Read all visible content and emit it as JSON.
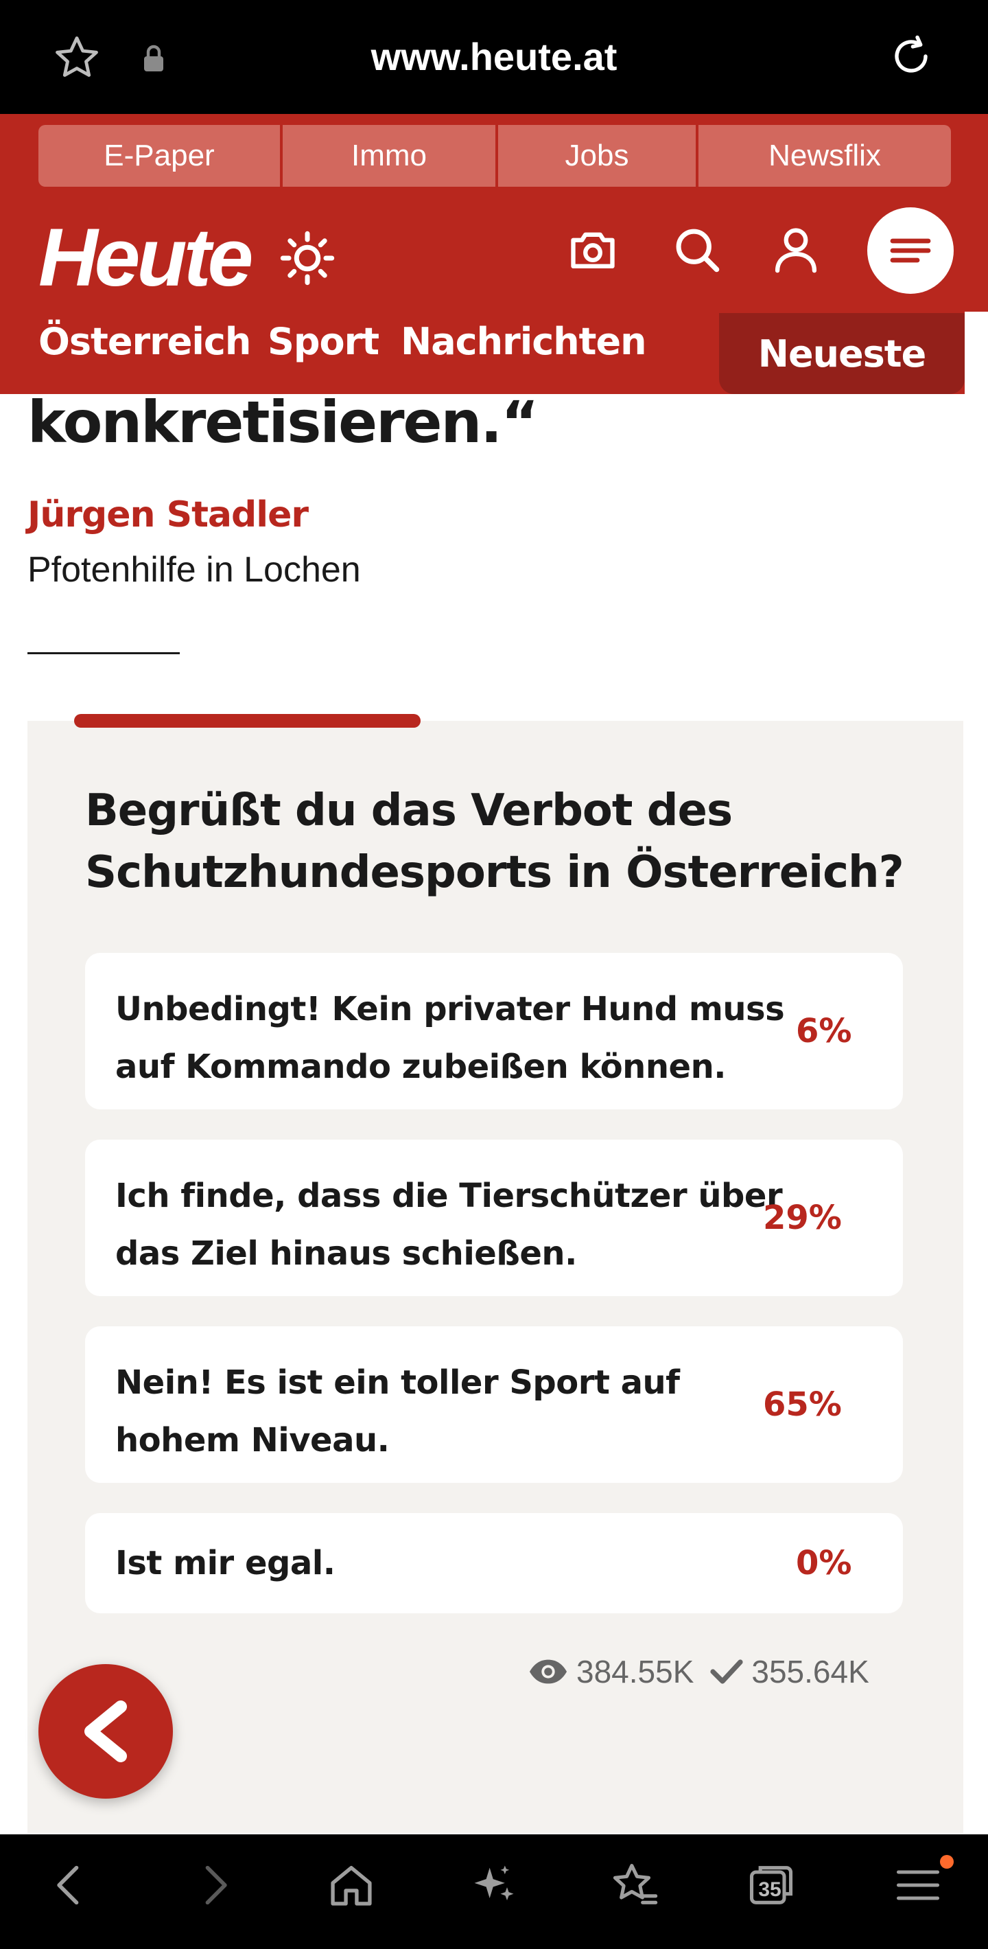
{
  "browser": {
    "url": "www.heute.at"
  },
  "site_header": {
    "top_links": [
      "E-Paper",
      "Immo",
      "Jobs",
      "Newsflix"
    ],
    "logo": "Heute",
    "nav": [
      "Österreich",
      "Sport",
      "Nachrichten"
    ],
    "nav_newest": "Neueste"
  },
  "article": {
    "quote_tail": "konkretisieren.“",
    "author_name": "Jürgen Stadler",
    "author_role": "Pfotenhilfe in Lochen"
  },
  "poll": {
    "question": "Begrüßt du das Verbot des Schutzhundesports in Österreich?",
    "options": [
      {
        "text": "Unbedingt! Kein privater Hund muss auf Kommando zubeißen können.",
        "percent": "6%"
      },
      {
        "text": "Ich finde, dass die Tierschützer über das Ziel hinaus schießen.",
        "percent": "29%"
      },
      {
        "text": "Nein! Es ist ein toller Sport auf hohem Niveau.",
        "percent": "65%"
      },
      {
        "text": "Ist mir egal.",
        "percent": "0%"
      }
    ],
    "views": "384.55K",
    "votes": "355.64K"
  },
  "bottom_nav": {
    "tab_count": "35"
  },
  "colors": {
    "brand_red": "#b8271e",
    "dark_red": "#93201a",
    "poll_bg": "#f4f2ef"
  }
}
